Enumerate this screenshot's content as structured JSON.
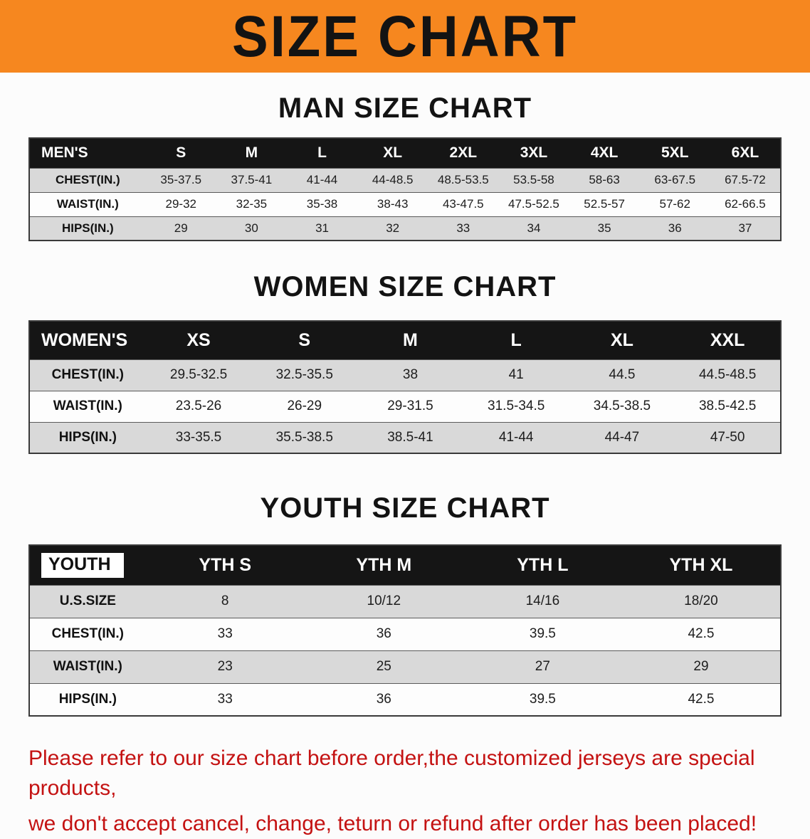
{
  "banner": {
    "title": "SIZE CHART",
    "bg_color": "#f6871f",
    "text_color": "#131313"
  },
  "sections": [
    {
      "id": "men",
      "heading": "MAN SIZE CHART",
      "table": {
        "header": [
          "MEN'S",
          "S",
          "M",
          "L",
          "XL",
          "2XL",
          "3XL",
          "4XL",
          "5XL",
          "6XL"
        ],
        "rows": [
          {
            "label": "CHEST(IN.)",
            "values": [
              "35-37.5",
              "37.5-41",
              "41-44",
              "44-48.5",
              "48.5-53.5",
              "53.5-58",
              "58-63",
              "63-67.5",
              "67.5-72"
            ]
          },
          {
            "label": "WAIST(IN.)",
            "values": [
              "29-32",
              "32-35",
              "35-38",
              "38-43",
              "43-47.5",
              "47.5-52.5",
              "52.5-57",
              "57-62",
              "62-66.5"
            ]
          },
          {
            "label": "HIPS(IN.)",
            "values": [
              "29",
              "30",
              "31",
              "32",
              "33",
              "34",
              "35",
              "36",
              "37"
            ]
          }
        ]
      }
    },
    {
      "id": "women",
      "heading": "WOMEN SIZE CHART",
      "table": {
        "header": [
          "WOMEN'S",
          "XS",
          "S",
          "M",
          "L",
          "XL",
          "XXL"
        ],
        "rows": [
          {
            "label": "CHEST(IN.)",
            "values": [
              "29.5-32.5",
              "32.5-35.5",
              "38",
              "41",
              "44.5",
              "44.5-48.5"
            ]
          },
          {
            "label": "WAIST(IN.)",
            "values": [
              "23.5-26",
              "26-29",
              "29-31.5",
              "31.5-34.5",
              "34.5-38.5",
              "38.5-42.5"
            ]
          },
          {
            "label": "HIPS(IN.)",
            "values": [
              "33-35.5",
              "35.5-38.5",
              "38.5-41",
              "41-44",
              "44-47",
              "47-50"
            ]
          }
        ]
      }
    },
    {
      "id": "youth",
      "heading": "YOUTH SIZE CHART",
      "table": {
        "header": [
          "YOUTH",
          "YTH S",
          "YTH M",
          "YTH L",
          "YTH XL"
        ],
        "rows": [
          {
            "label": "U.S.SIZE",
            "values": [
              "8",
              "10/12",
              "14/16",
              "18/20"
            ]
          },
          {
            "label": "CHEST(IN.)",
            "values": [
              "33",
              "36",
              "39.5",
              "42.5"
            ]
          },
          {
            "label": "WAIST(IN.)",
            "values": [
              "23",
              "25",
              "27",
              "29"
            ]
          },
          {
            "label": "HIPS(IN.)",
            "values": [
              "33",
              "36",
              "39.5",
              "42.5"
            ]
          }
        ]
      }
    }
  ],
  "footer": {
    "line1": "Please refer to our size chart before order,the customized jerseys are special products,",
    "line2": "we don't accept cancel, change, teturn or refund after order has been placed!",
    "text_color": "#c41212"
  },
  "colors": {
    "banner_orange": "#f6871f",
    "table_header_black": "#151515",
    "row_stripe_gray": "#d9d9d9",
    "row_plain_white": "#fdfdfd",
    "footer_red": "#c41212"
  }
}
